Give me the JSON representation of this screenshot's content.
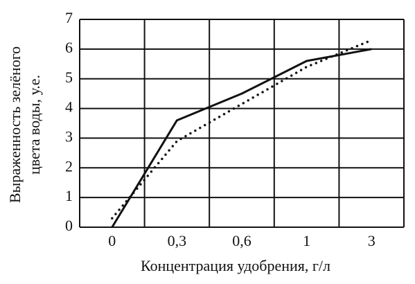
{
  "chart_data": {
    "type": "line",
    "xlabel": "Концентрация удобрения, г/л",
    "ylabel": [
      "Выраженность зелёного",
      "цвета воды, у.е."
    ],
    "categories": [
      "0",
      "0,3",
      "0,6",
      "1",
      "3"
    ],
    "series": [
      {
        "color": "#111111",
        "style": "solid",
        "values": [
          0,
          3.6,
          4.5,
          5.6,
          6.0
        ]
      },
      {
        "color": "#111111",
        "style": "dotted",
        "values": [
          0.3,
          2.9,
          4.15,
          5.4,
          6.3
        ]
      }
    ],
    "ylim": [
      0,
      7
    ],
    "yticks": [
      0,
      1,
      2,
      3,
      4,
      5,
      6,
      7
    ],
    "grid": true
  }
}
